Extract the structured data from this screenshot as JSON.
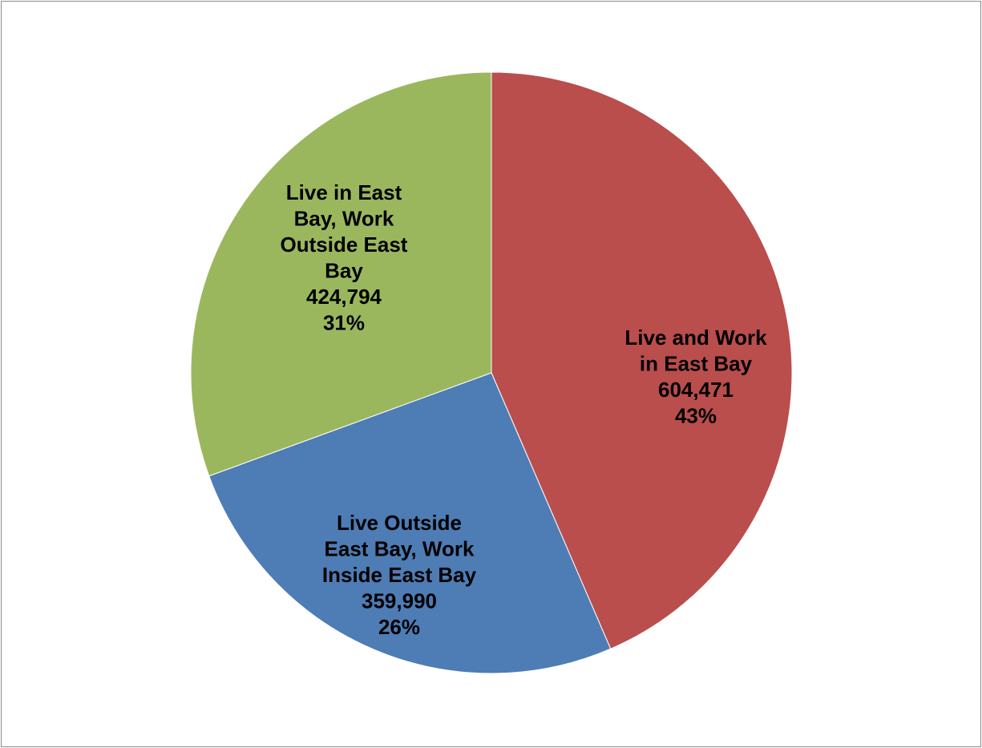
{
  "chart_data": {
    "type": "pie",
    "title": "",
    "slices": [
      {
        "label_lines": [
          "Live and Work",
          "in East Bay"
        ],
        "value": 604471,
        "value_text": "604,471",
        "percent": 43,
        "percent_text": "43%",
        "color": "#b94e4c"
      },
      {
        "label_lines": [
          "Live Outside",
          "East Bay,  Work",
          "Inside East Bay"
        ],
        "value": 359990,
        "value_text": "359,990",
        "percent": 26,
        "percent_text": "26%",
        "color": "#4e7cb4"
      },
      {
        "label_lines": [
          "Live in East",
          "Bay, Work",
          "Outside East",
          "Bay"
        ],
        "value": 424794,
        "value_text": "424,794",
        "percent": 31,
        "percent_text": "31%",
        "color": "#9bb75e"
      }
    ],
    "start_angle_deg": 0,
    "direction": "clockwise",
    "legend": "none",
    "slice_border_color": "#ffffff"
  }
}
